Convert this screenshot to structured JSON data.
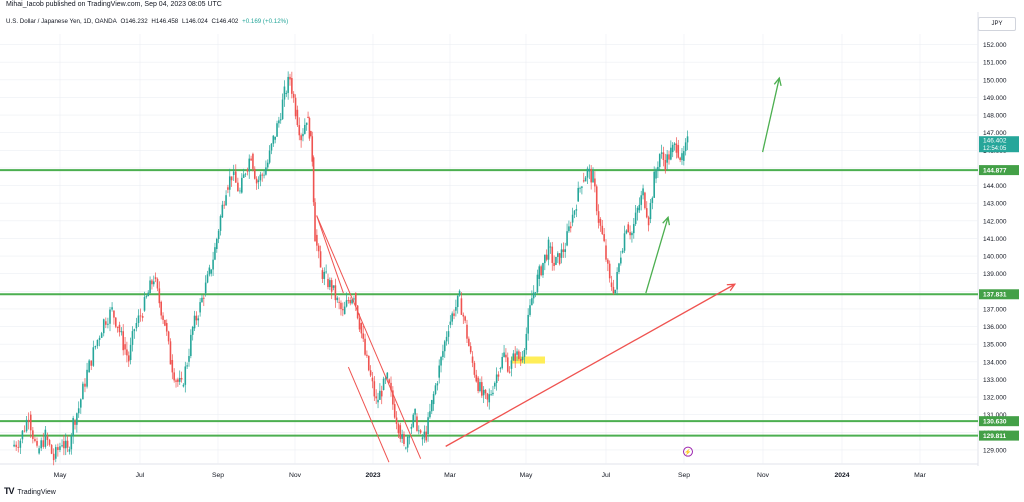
{
  "header": {
    "author_line": "Mihai_Iacob published on TradingView.com, Sep 04, 2023 08:05 UTC",
    "symbol": "U.S. Dollar / Japanese Yen, 1D, OANDA",
    "ohlc": {
      "open": "O146.232",
      "high": "H146.458",
      "low": "L146.024",
      "close": "C146.402",
      "change": "+0.169 (+0.12%)"
    },
    "currency": "JPY"
  },
  "footer": {
    "logo": "TV",
    "brand": "TradingView"
  },
  "chart_data": {
    "type": "candlestick",
    "ylim": [
      128.2,
      152.6
    ],
    "y_ticks": [
      129,
      130,
      131,
      132,
      133,
      134,
      135,
      136,
      137,
      138,
      139,
      140,
      141,
      142,
      143,
      144,
      145,
      146,
      147,
      148,
      149,
      150,
      151,
      152
    ],
    "x_ticks": [
      "May",
      "Jul",
      "Sep",
      "Nov",
      "2023",
      "Mar",
      "May",
      "Jul",
      "Sep",
      "Nov",
      "2024",
      "Mar"
    ],
    "last_price": {
      "value": "146.402",
      "countdown": "12:54:05"
    },
    "horizontal_levels": [
      {
        "value": 144.877,
        "label": "144.877"
      },
      {
        "value": 137.831,
        "label": "137.831"
      },
      {
        "value": 130.63,
        "label": "130.630"
      },
      {
        "value": 129.811,
        "label": "129.811"
      }
    ],
    "highlight_zone": {
      "from": 133.9,
      "to": 134.3
    },
    "colors": {
      "up": "#26a69a",
      "down": "#ef5350",
      "level": "#4caf50",
      "arrow_green": "#4caf50",
      "arrow_red": "#ef5350",
      "zone": "#ffeb3b",
      "grid": "#eceff3"
    },
    "price_path": [
      [
        0.0,
        129.2
      ],
      [
        0.015,
        129.6
      ],
      [
        0.03,
        131.0
      ],
      [
        0.045,
        128.8
      ],
      [
        0.06,
        129.8
      ],
      [
        0.075,
        128.5
      ],
      [
        0.09,
        129.5
      ],
      [
        0.1,
        128.9
      ],
      [
        0.11,
        130.6
      ],
      [
        0.12,
        131.4
      ],
      [
        0.135,
        133.4
      ],
      [
        0.15,
        134.9
      ],
      [
        0.165,
        136.3
      ],
      [
        0.18,
        136.9
      ],
      [
        0.19,
        136.1
      ],
      [
        0.2,
        135.0
      ],
      [
        0.21,
        134.1
      ],
      [
        0.22,
        135.9
      ],
      [
        0.235,
        136.9
      ],
      [
        0.245,
        137.9
      ],
      [
        0.255,
        138.8
      ],
      [
        0.265,
        137.4
      ],
      [
        0.275,
        136.2
      ],
      [
        0.285,
        134.1
      ],
      [
        0.295,
        133.0
      ],
      [
        0.305,
        132.6
      ],
      [
        0.315,
        134.0
      ],
      [
        0.325,
        135.9
      ],
      [
        0.335,
        136.8
      ],
      [
        0.345,
        137.9
      ],
      [
        0.355,
        139.0
      ],
      [
        0.365,
        140.4
      ],
      [
        0.375,
        142.2
      ],
      [
        0.385,
        143.9
      ],
      [
        0.395,
        144.6
      ],
      [
        0.41,
        143.6
      ],
      [
        0.42,
        144.9
      ],
      [
        0.43,
        145.8
      ],
      [
        0.44,
        144.2
      ],
      [
        0.45,
        144.6
      ],
      [
        0.46,
        145.3
      ],
      [
        0.47,
        146.6
      ],
      [
        0.48,
        147.7
      ],
      [
        0.49,
        149.2
      ],
      [
        0.5,
        150.1
      ],
      [
        0.51,
        148.3
      ],
      [
        0.52,
        146.8
      ],
      [
        0.53,
        147.9
      ],
      [
        0.535,
        147.1
      ],
      [
        0.54,
        145.6
      ],
      [
        0.545,
        141.2
      ],
      [
        0.555,
        139.2
      ],
      [
        0.565,
        138.7
      ],
      [
        0.575,
        138.2
      ],
      [
        0.585,
        137.4
      ],
      [
        0.595,
        136.7
      ],
      [
        0.605,
        137.5
      ],
      [
        0.615,
        137.9
      ],
      [
        0.625,
        136.2
      ],
      [
        0.635,
        134.4
      ],
      [
        0.645,
        133.1
      ],
      [
        0.655,
        131.7
      ],
      [
        0.665,
        132.4
      ],
      [
        0.675,
        133.0
      ],
      [
        0.685,
        131.6
      ],
      [
        0.695,
        130.4
      ],
      [
        0.705,
        129.1
      ],
      [
        0.715,
        130.2
      ],
      [
        0.725,
        130.9
      ],
      [
        0.735,
        129.6
      ],
      [
        0.745,
        129.9
      ],
      [
        0.755,
        131.6
      ],
      [
        0.765,
        133.1
      ],
      [
        0.775,
        134.6
      ],
      [
        0.785,
        136.1
      ],
      [
        0.795,
        136.9
      ],
      [
        0.805,
        137.6
      ],
      [
        0.815,
        136.1
      ],
      [
        0.825,
        134.3
      ],
      [
        0.835,
        133.1
      ],
      [
        0.845,
        132.1
      ],
      [
        0.855,
        131.7
      ],
      [
        0.865,
        132.6
      ],
      [
        0.875,
        133.6
      ],
      [
        0.885,
        134.4
      ],
      [
        0.895,
        133.6
      ],
      [
        0.905,
        134.4
      ],
      [
        0.915,
        134.1
      ],
      [
        0.925,
        135.6
      ],
      [
        0.935,
        137.6
      ],
      [
        0.945,
        138.7
      ],
      [
        0.955,
        139.6
      ],
      [
        0.965,
        140.5
      ],
      [
        0.975,
        139.5
      ],
      [
        0.985,
        139.9
      ],
      [
        0.995,
        140.6
      ],
      [
        1.005,
        141.9
      ],
      [
        1.015,
        143.1
      ],
      [
        1.025,
        144.3
      ],
      [
        1.035,
        144.8
      ],
      [
        1.045,
        144.4
      ],
      [
        1.055,
        142.1
      ],
      [
        1.065,
        140.6
      ],
      [
        1.075,
        138.5
      ],
      [
        1.085,
        138.1
      ],
      [
        1.095,
        140.2
      ],
      [
        1.105,
        141.8
      ],
      [
        1.115,
        141.3
      ],
      [
        1.125,
        142.6
      ],
      [
        1.135,
        143.6
      ],
      [
        1.145,
        142.1
      ],
      [
        1.155,
        144.4
      ],
      [
        1.165,
        145.8
      ],
      [
        1.175,
        145.3
      ],
      [
        1.185,
        145.9
      ],
      [
        1.195,
        146.3
      ],
      [
        1.205,
        145.4
      ],
      [
        1.215,
        146.4
      ]
    ],
    "annotations": [
      {
        "type": "arrow",
        "color": "green",
        "from": [
          1.14,
          137.9
        ],
        "to": [
          1.18,
          142.2
        ]
      },
      {
        "type": "arrow",
        "color": "green",
        "from": [
          1.35,
          145.9
        ],
        "to": [
          1.38,
          150.1
        ]
      },
      {
        "type": "arrow",
        "color": "red",
        "from": [
          0.78,
          129.2
        ],
        "to": [
          1.3,
          138.4
        ]
      },
      {
        "type": "wedge",
        "color": "red"
      }
    ]
  }
}
